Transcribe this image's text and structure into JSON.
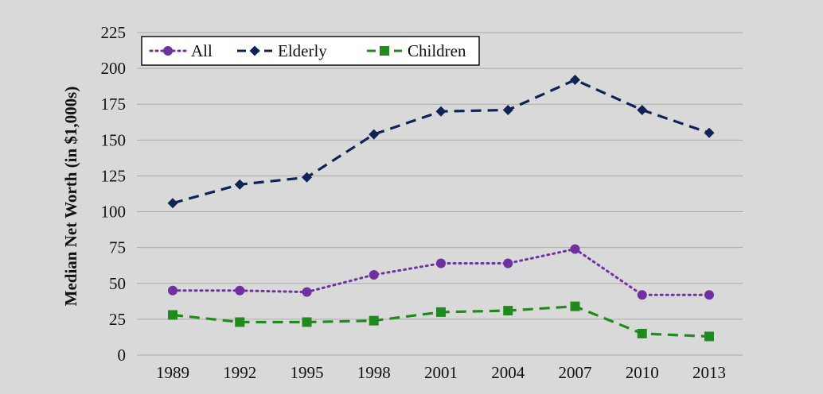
{
  "chart_data": {
    "type": "line",
    "title": "",
    "xlabel": "",
    "ylabel": "Median Net Worth (in $1,000s)",
    "categories": [
      "1989",
      "1992",
      "1995",
      "1998",
      "2001",
      "2004",
      "2007",
      "2010",
      "2013"
    ],
    "ylim": [
      0,
      225
    ],
    "yticks": [
      "0",
      "25",
      "50",
      "75",
      "100",
      "125",
      "150",
      "175",
      "200",
      "225"
    ],
    "grid": true,
    "legend_position": "top-left",
    "series": [
      {
        "name": "All",
        "color": "#7030a0",
        "marker": "circle",
        "dash": "dotted",
        "values": [
          45,
          45,
          44,
          56,
          64,
          64,
          74,
          42,
          42
        ]
      },
      {
        "name": "Elderly",
        "color": "#0f2454",
        "marker": "diamond",
        "dash": "dashed",
        "values": [
          106,
          119,
          124,
          154,
          170,
          171,
          192,
          171,
          155
        ]
      },
      {
        "name": "Children",
        "color": "#208a20",
        "marker": "square",
        "dash": "dashed",
        "values": [
          28,
          23,
          23,
          24,
          30,
          31,
          34,
          15,
          13
        ]
      }
    ]
  }
}
